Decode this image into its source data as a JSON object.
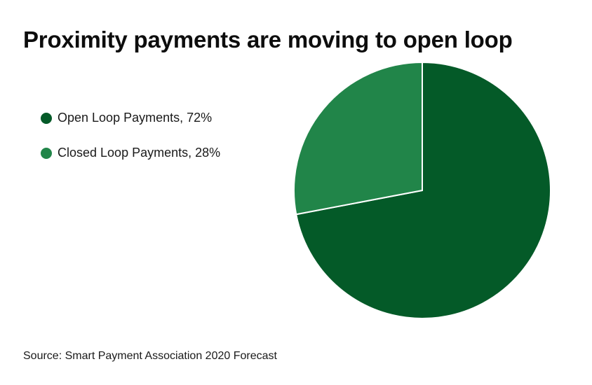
{
  "title": "Proximity payments are moving to open loop",
  "source": "Source: Smart Payment Association 2020 Forecast",
  "chart_data": {
    "type": "pie",
    "title": "Proximity payments are moving to open loop",
    "slices": [
      {
        "label": "Open Loop Payments, 72%",
        "category": "Open Loop Payments",
        "value": 72,
        "color": "#045a28"
      },
      {
        "label": "Closed Loop Payments, 28%",
        "category": "Closed Loop Payments",
        "value": 28,
        "color": "#218549"
      }
    ],
    "start_angle_deg": 0,
    "direction": "clockwise",
    "slice_border_color": "#ffffff",
    "legend_position": "left"
  }
}
